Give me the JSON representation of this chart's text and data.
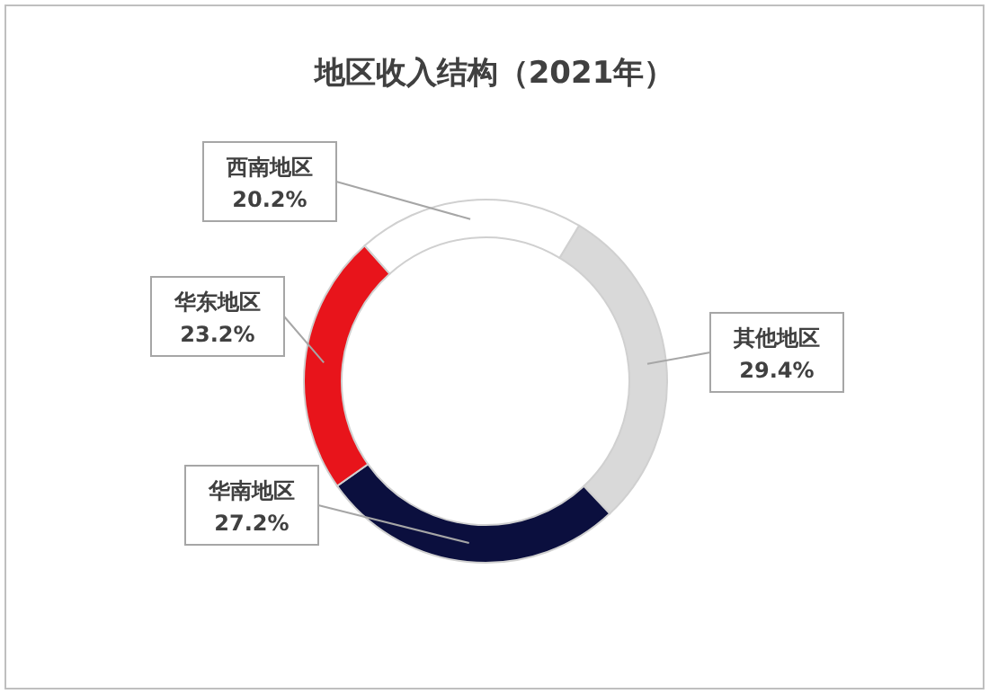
{
  "chart_data": {
    "type": "donut",
    "title": "地区收入结构（2021年）",
    "categories": [
      "其他地区",
      "华南地区",
      "华东地区",
      "西南地区"
    ],
    "values": [
      29.4,
      27.2,
      23.2,
      20.2
    ],
    "colors": [
      "#d9d9d9",
      "#0b0f3e",
      "#e8141b",
      "#ffffff"
    ],
    "value_labels": [
      "29.4%",
      "27.2%",
      "23.2%",
      "20.2%"
    ]
  }
}
